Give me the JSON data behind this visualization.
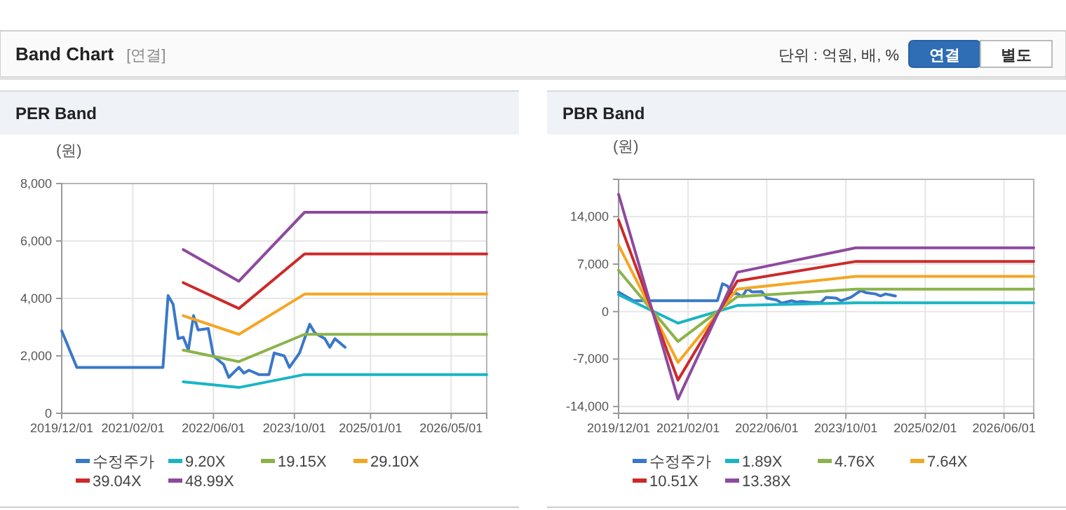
{
  "chart_data": [
    {
      "type": "other",
      "title": "Band Chart",
      "annotations": [
        "[연결]",
        "단위 : 억원, 배, %",
        "연결",
        "별도"
      ]
    },
    {
      "type": "line",
      "title": "PER Band",
      "ylabel": "(원)",
      "xlim": [
        "2019-12-01",
        "2026-12-01"
      ],
      "ylim": [
        0,
        8000
      ],
      "xticks": [
        {
          "value": "2019-12-01",
          "label": "2019/12/01"
        },
        {
          "value": "2021-02-01",
          "label": "2021/02/01"
        },
        {
          "value": "2022-06-01",
          "label": "2022/06/01"
        },
        {
          "value": "2023-10-01",
          "label": "2023/10/01"
        },
        {
          "value": "2025-01-01",
          "label": "2025/01/01"
        },
        {
          "value": "2026-05-01",
          "label": "2026/05/01"
        }
      ],
      "yticks": [
        0,
        {
          "value": 2000,
          "label": "2,000"
        },
        {
          "value": 4000,
          "label": "4,000"
        },
        {
          "value": 6000,
          "label": "6,000"
        },
        {
          "value": 8000,
          "label": "8,000"
        }
      ],
      "grid": true,
      "legend": "bottom",
      "line_style": "solid",
      "marker": "none",
      "series": [
        {
          "name": "수정주가",
          "color": "#3a78c9",
          "x": [
            "2019-12-01",
            "2020-03-01",
            "2021-08-01",
            "2021-09-01",
            "2021-10-01",
            "2021-11-01",
            "2021-12-01",
            "2022-01-01",
            "2022-02-01",
            "2022-03-01",
            "2022-05-01",
            "2022-06-01",
            "2022-08-01",
            "2022-09-01",
            "2022-11-01",
            "2022-12-01",
            "2023-01-01",
            "2023-03-01",
            "2023-05-01",
            "2023-06-01",
            "2023-08-01",
            "2023-09-01",
            "2023-11-01",
            "2023-12-01",
            "2024-01-01",
            "2024-02-01",
            "2024-04-01",
            "2024-05-01",
            "2024-06-01",
            "2024-08-01"
          ],
          "values": [
            2870,
            1600,
            1600,
            4100,
            3800,
            2600,
            2650,
            2200,
            3400,
            2900,
            2950,
            2000,
            1700,
            1250,
            1600,
            1400,
            1500,
            1350,
            1350,
            2100,
            2000,
            1600,
            2100,
            2600,
            3100,
            2800,
            2600,
            2300,
            2600,
            2300
          ]
        },
        {
          "name": "9.20X",
          "color": "#1ab5c4",
          "x": [
            "2021-12-01",
            "2022-11-01",
            "2023-12-01",
            "2026-12-01"
          ],
          "values": [
            1100,
            900,
            1350,
            1350
          ]
        },
        {
          "name": "19.15X",
          "color": "#8bb34a",
          "x": [
            "2021-12-01",
            "2022-11-01",
            "2023-12-01",
            "2026-12-01"
          ],
          "values": [
            2200,
            1800,
            2750,
            2750
          ]
        },
        {
          "name": "29.10X",
          "color": "#f5a623",
          "x": [
            "2021-12-01",
            "2022-11-01",
            "2023-12-01",
            "2026-12-01"
          ],
          "values": [
            3400,
            2750,
            4150,
            4150
          ]
        },
        {
          "name": "39.04X",
          "color": "#cc2a2a",
          "x": [
            "2021-12-01",
            "2022-11-01",
            "2023-12-01",
            "2026-12-01"
          ],
          "values": [
            4550,
            3650,
            5550,
            5550
          ]
        },
        {
          "name": "48.99X",
          "color": "#8e4a9e",
          "x": [
            "2021-12-01",
            "2022-11-01",
            "2023-12-01",
            "2026-12-01"
          ],
          "values": [
            5700,
            4600,
            7000,
            7000
          ]
        }
      ]
    },
    {
      "type": "line",
      "title": "PBR Band",
      "ylabel": "(원)",
      "xlim": [
        "2019-12-01",
        "2026-12-01"
      ],
      "ylim": [
        -15000,
        19500
      ],
      "xticks": [
        {
          "value": "2019-12-01",
          "label": "2019/12/01"
        },
        {
          "value": "2021-02-01",
          "label": "2021/02/01"
        },
        {
          "value": "2022-06-01",
          "label": "2022/06/01"
        },
        {
          "value": "2023-10-01",
          "label": "2023/10/01"
        },
        {
          "value": "2025-02-01",
          "label": "2025/02/01"
        },
        {
          "value": "2026-06-01",
          "label": "2026/06/01"
        }
      ],
      "yticks": [
        {
          "value": -14000,
          "label": "-14,000"
        },
        {
          "value": -7000,
          "label": "-7,000"
        },
        0,
        {
          "value": 7000,
          "label": "7,000"
        },
        {
          "value": 14000,
          "label": "14,000"
        }
      ],
      "grid": true,
      "legend": "bottom",
      "line_style": "solid",
      "marker": "none",
      "series": [
        {
          "name": "수정주가",
          "color": "#3a78c9",
          "x": [
            "2019-12-01",
            "2020-03-01",
            "2021-08-01",
            "2021-09-01",
            "2021-10-01",
            "2021-11-01",
            "2021-12-01",
            "2022-01-01",
            "2022-02-01",
            "2022-03-01",
            "2022-05-01",
            "2022-06-01",
            "2022-08-01",
            "2022-09-01",
            "2022-11-01",
            "2022-12-01",
            "2023-01-01",
            "2023-03-01",
            "2023-05-01",
            "2023-06-01",
            "2023-08-01",
            "2023-09-01",
            "2023-11-01",
            "2023-12-01",
            "2024-01-01",
            "2024-02-01",
            "2024-04-01",
            "2024-05-01",
            "2024-06-01",
            "2024-08-01"
          ],
          "values": [
            2870,
            1600,
            1600,
            4100,
            3800,
            2600,
            2650,
            2200,
            3400,
            2900,
            2950,
            2000,
            1700,
            1250,
            1600,
            1400,
            1500,
            1350,
            1350,
            2100,
            2000,
            1600,
            2100,
            2600,
            3100,
            2800,
            2600,
            2300,
            2600,
            2300
          ]
        },
        {
          "name": "1.89X",
          "color": "#1ab5c4",
          "x": [
            "2019-12-01",
            "2020-12-01",
            "2021-12-01",
            "2023-12-01",
            "2026-12-01"
          ],
          "values": [
            2500,
            -1700,
            900,
            1300,
            1300
          ]
        },
        {
          "name": "4.76X",
          "color": "#8bb34a",
          "x": [
            "2019-12-01",
            "2020-12-01",
            "2021-12-01",
            "2023-12-01",
            "2026-12-01"
          ],
          "values": [
            6100,
            -4400,
            2200,
            3300,
            3300
          ]
        },
        {
          "name": "7.64X",
          "color": "#f5a623",
          "x": [
            "2019-12-01",
            "2020-12-01",
            "2021-12-01",
            "2023-12-01",
            "2026-12-01"
          ],
          "values": [
            9800,
            -7500,
            3300,
            5200,
            5200
          ]
        },
        {
          "name": "10.51X",
          "color": "#cc2a2a",
          "x": [
            "2019-12-01",
            "2020-12-01",
            "2021-12-01",
            "2023-12-01",
            "2026-12-01"
          ],
          "values": [
            13500,
            -10100,
            4500,
            7400,
            7400
          ]
        },
        {
          "name": "13.38X",
          "color": "#8e4a9e",
          "x": [
            "2019-12-01",
            "2020-12-01",
            "2021-12-01",
            "2023-12-01",
            "2026-12-01"
          ],
          "values": [
            17300,
            -12900,
            5800,
            9400,
            9400
          ]
        }
      ]
    }
  ]
}
